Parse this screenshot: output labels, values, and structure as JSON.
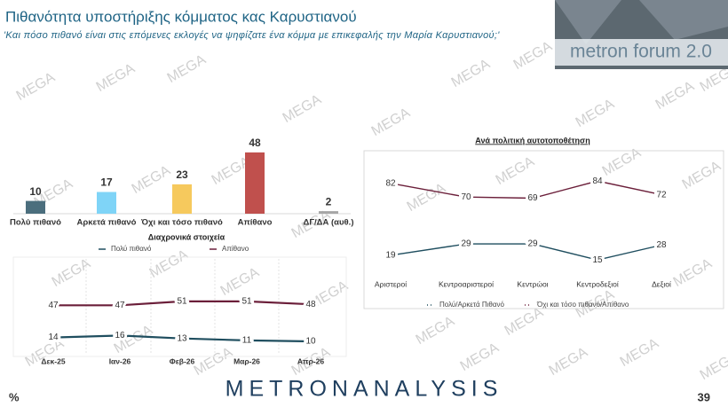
{
  "header": {
    "title": "Πιθανότητα υποστήριξης κόμματος κας Καρυστιανού",
    "subtitle": "'Και πόσο πιθανό είναι στις επόμενες εκλογές να ψηφίζατε ένα κόμμα με επικεφαλής την Μαρία Καρυστιανού;'",
    "logo": "metron forum 2.0"
  },
  "watermark": "MEGA",
  "chart_data": [
    {
      "type": "bar",
      "categories": [
        "Πολύ πιθανό",
        "Αρκετά πιθανό",
        "Όχι και τόσο πιθανό",
        "Απίθανο",
        "ΔΓ/ΔΑ (αυθ.)"
      ],
      "values": [
        10,
        17,
        23,
        48,
        2
      ],
      "colors": [
        "#4b6e7d",
        "#7fd4f7",
        "#f6c95d",
        "#c0504d",
        "#a6a6a6"
      ]
    },
    {
      "type": "line",
      "title": "Διαχρονικά στοιχεία",
      "categories": [
        "Δεκ-25",
        "Ιαν-26",
        "Φεβ-26",
        "Μαρ-26",
        "Απρ-26"
      ],
      "series": [
        {
          "name": "Πολύ πιθανό",
          "color": "#1f4e5f",
          "values": [
            14,
            16,
            13,
            11,
            10
          ]
        },
        {
          "name": "Απίθανο",
          "color": "#6b1f3a",
          "values": [
            47,
            47,
            51,
            51,
            48
          ]
        }
      ]
    },
    {
      "type": "line",
      "title": "Ανά πολιτική αυτοτοποθέτηση",
      "categories": [
        "Αριστεροί",
        "Κεντροαριστεροί",
        "Κεντρώοι",
        "Κεντροδεξιοί",
        "Δεξιοί"
      ],
      "series": [
        {
          "name": "Πολύ/Αρκετά Πιθανό",
          "color": "#1f4e5f",
          "values": [
            19,
            29,
            29,
            15,
            28
          ]
        },
        {
          "name": "Όχι και τόσο πιθανό/Απίθανο",
          "color": "#6b1f3a",
          "values": [
            82,
            70,
            69,
            84,
            72
          ]
        }
      ]
    }
  ],
  "footer": {
    "brand": "METRONANALYSIS",
    "unit": "%",
    "page": "39"
  }
}
